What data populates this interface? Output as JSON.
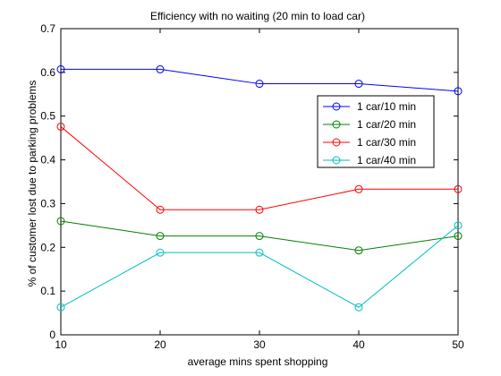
{
  "chart_data": {
    "type": "line",
    "title": "Efficiency with no waiting (20 min to load car)",
    "xlabel": "average mins spent shopping",
    "ylabel": "% of customer lost due to parking problems",
    "xlim": [
      10,
      50
    ],
    "ylim": [
      0,
      0.7
    ],
    "x_ticks": [
      10,
      20,
      30,
      40,
      50
    ],
    "y_ticks": [
      0,
      0.1,
      0.2,
      0.3,
      0.4,
      0.5,
      0.6,
      0.7
    ],
    "x_tick_labels": [
      "10",
      "20",
      "30",
      "40",
      "50"
    ],
    "y_tick_labels": [
      "0",
      "0.1",
      "0.2",
      "0.3",
      "0.4",
      "0.5",
      "0.6",
      "0.7"
    ],
    "grid": false,
    "legend_position": "top-right",
    "x": [
      10,
      20,
      30,
      40,
      50
    ],
    "series": [
      {
        "name": "1 car/10 min",
        "color": "#0000ff",
        "values": [
          0.607,
          0.607,
          0.574,
          0.574,
          0.557
        ]
      },
      {
        "name": "1 car/20 min",
        "color": "#008000",
        "values": [
          0.26,
          0.226,
          0.226,
          0.193,
          0.226
        ]
      },
      {
        "name": "1 car/30 min",
        "color": "#ff0000",
        "values": [
          0.476,
          0.286,
          0.286,
          0.333,
          0.333
        ]
      },
      {
        "name": "1 car/40 min",
        "color": "#00bfbf",
        "values": [
          0.063,
          0.188,
          0.188,
          0.063,
          0.25
        ]
      }
    ]
  }
}
